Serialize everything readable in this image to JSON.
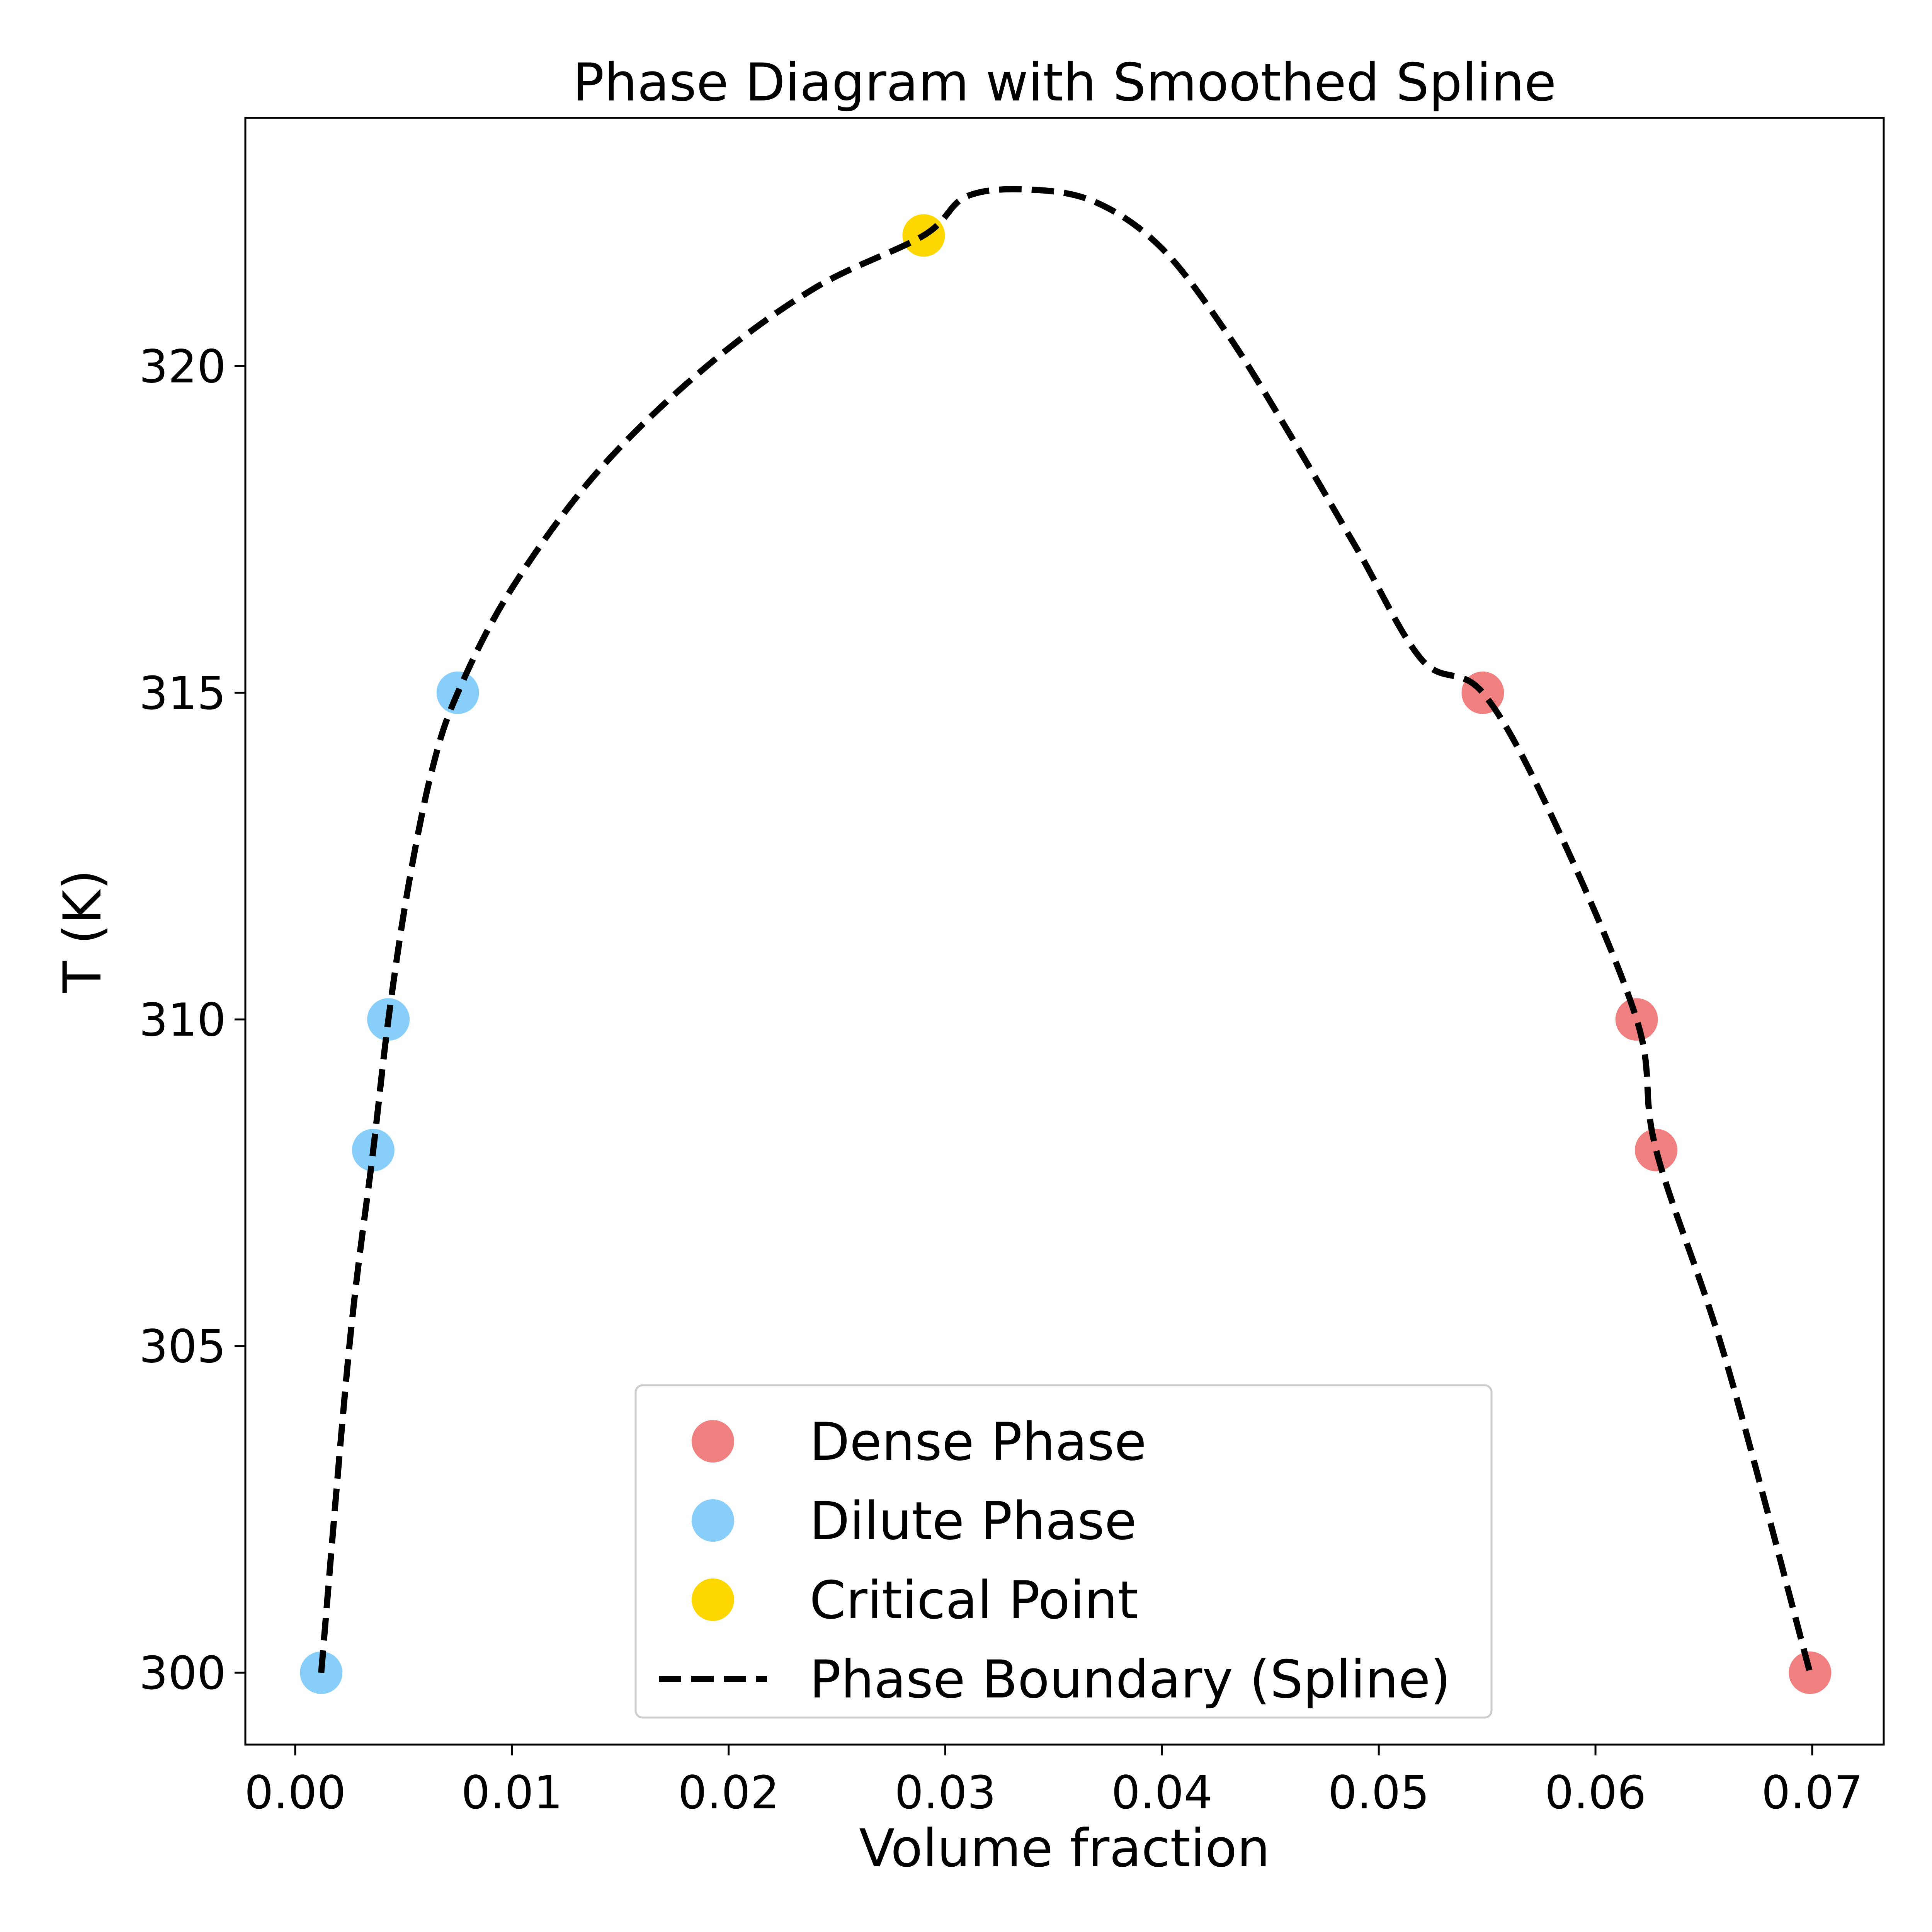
{
  "chart_data": {
    "type": "scatter",
    "title": "Phase Diagram with Smoothed Spline",
    "xlabel": "Volume fraction",
    "ylabel": "T (K)",
    "xlim": [
      -0.0023,
      0.0733
    ],
    "ylim": [
      298.9,
      323.8
    ],
    "xticks": [
      0.0,
      0.01,
      0.02,
      0.03,
      0.04,
      0.05,
      0.06,
      0.07
    ],
    "xtick_labels": [
      "0.00",
      "0.01",
      "0.02",
      "0.03",
      "0.04",
      "0.05",
      "0.06",
      "0.07"
    ],
    "yticks": [
      300,
      305,
      310,
      315,
      320
    ],
    "ytick_labels": [
      "300",
      "305",
      "310",
      "315",
      "320"
    ],
    "grid": false,
    "legend_position": "lower-center",
    "series": [
      {
        "name": "Dense Phase",
        "kind": "scatter",
        "color": "#f08080",
        "x": [
          0.0548,
          0.0619,
          0.0628,
          0.0699
        ],
        "y": [
          315,
          310,
          308,
          300
        ]
      },
      {
        "name": "Dilute Phase",
        "kind": "scatter",
        "color": "#87cefa",
        "x": [
          0.0012,
          0.0036,
          0.0043,
          0.0075
        ],
        "y": [
          300,
          308,
          310,
          315
        ]
      },
      {
        "name": "Critical Point",
        "kind": "scatter",
        "color": "#ffd700",
        "x": [
          0.029
        ],
        "y": [
          322
        ]
      },
      {
        "name": "Phase Boundary (Spline)",
        "kind": "line",
        "color": "#000000",
        "dash": "dashed",
        "x": [
          0.0012,
          0.0025,
          0.0036,
          0.0043,
          0.0052,
          0.0063,
          0.0075,
          0.01,
          0.014,
          0.019,
          0.024,
          0.029,
          0.031,
          0.034,
          0.037,
          0.04,
          0.043,
          0.046,
          0.049,
          0.052,
          0.0548,
          0.058,
          0.0619,
          0.0628,
          0.066,
          0.0699
        ],
        "y": [
          300,
          305,
          308,
          310,
          312,
          313.8,
          315,
          316.6,
          318.4,
          320.0,
          321.2,
          322.0,
          322.6,
          322.7,
          322.5,
          321.8,
          320.5,
          318.9,
          317.2,
          315.5,
          315,
          313.1,
          310,
          308,
          304.8,
          300
        ]
      }
    ]
  }
}
